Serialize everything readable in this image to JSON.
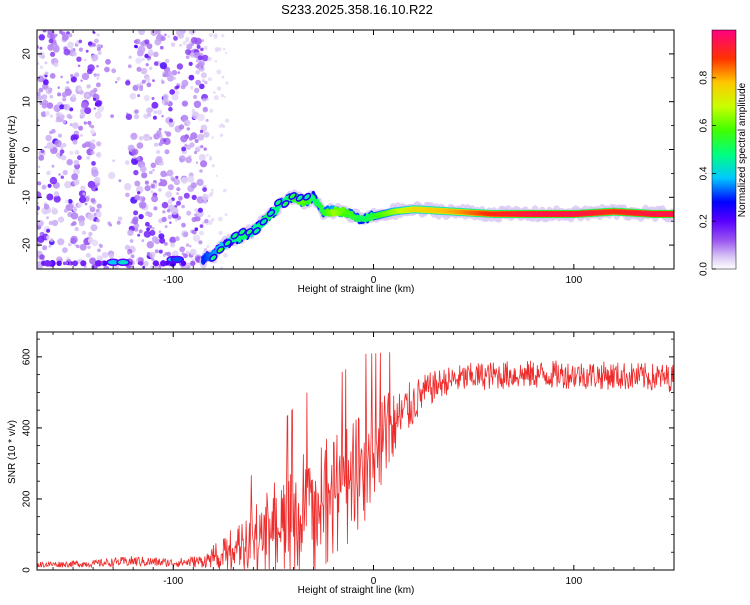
{
  "title": "S233.2025.358.16.10.R22",
  "chart_data": [
    {
      "type": "heatmap",
      "name": "spectrogram",
      "xlabel": "Height of straight line (km)",
      "ylabel": "Frequency (Hz)",
      "xlim": [
        -168,
        150
      ],
      "ylim": [
        -25,
        25
      ],
      "xticks": [
        -100,
        0,
        100
      ],
      "yticks": [
        -20,
        -10,
        0,
        10,
        20
      ],
      "xtick_labels": [
        "-100",
        "0",
        "100"
      ],
      "ytick_labels": [
        "-20",
        "-10",
        "0",
        "10",
        "20"
      ],
      "colorbar": {
        "label": "Normalized spectral amplitude",
        "range": [
          0,
          1
        ],
        "ticks": [
          0.0,
          0.2,
          0.4,
          0.6,
          0.8
        ],
        "tick_labels": [
          "0.0",
          "0.2",
          "0.4",
          "0.6",
          "0.8"
        ]
      },
      "carrier_track": {
        "x": [
          -85,
          -80,
          -75,
          -70,
          -65,
          -60,
          -55,
          -50,
          -45,
          -40,
          -35,
          -30,
          -25,
          -20,
          -15,
          -10,
          -5,
          0,
          10,
          20,
          40,
          60,
          80,
          100,
          120,
          140,
          150
        ],
        "freq": [
          -23,
          -22,
          -20,
          -19,
          -18,
          -17,
          -15,
          -13,
          -11,
          -10,
          -11,
          -10,
          -13,
          -13,
          -13,
          -14,
          -14.5,
          -14,
          -13,
          -12.5,
          -13,
          -13.5,
          -13.5,
          -13.5,
          -13,
          -13.5,
          -13.5
        ],
        "amplitude": [
          0.3,
          0.35,
          0.4,
          0.45,
          0.5,
          0.45,
          0.5,
          0.5,
          0.45,
          0.55,
          0.6,
          0.5,
          0.55,
          0.65,
          0.6,
          0.55,
          0.5,
          0.55,
          0.65,
          0.75,
          0.8,
          0.9,
          0.95,
          0.95,
          0.9,
          0.95,
          0.95
        ]
      },
      "notes": "noise scatter at low amplitude for x < -85 km"
    },
    {
      "type": "line",
      "name": "snr",
      "xlabel": "Height of straight line (km)",
      "ylabel": "SNR (10 * v/v)",
      "xlim": [
        -168,
        150
      ],
      "ylim": [
        0,
        670
      ],
      "xticks": [
        -100,
        0,
        100
      ],
      "yticks": [
        0,
        200,
        400,
        600
      ],
      "xtick_labels": [
        "-100",
        "0",
        "100"
      ],
      "ytick_labels": [
        "0",
        "200",
        "400",
        "600"
      ],
      "line_color": "#ee2b2b",
      "envelope": {
        "x": [
          -168,
          -140,
          -120,
          -100,
          -85,
          -75,
          -65,
          -55,
          -45,
          -35,
          -25,
          -15,
          -5,
          5,
          15,
          25,
          35,
          50,
          70,
          100,
          130,
          150
        ],
        "mean": [
          15,
          18,
          25,
          20,
          25,
          45,
          70,
          90,
          110,
          140,
          180,
          230,
          300,
          370,
          440,
          500,
          530,
          545,
          550,
          550,
          545,
          540
        ],
        "spread": [
          8,
          10,
          15,
          12,
          18,
          40,
          70,
          110,
          140,
          160,
          160,
          150,
          140,
          110,
          80,
          50,
          40,
          40,
          40,
          40,
          40,
          40
        ]
      }
    }
  ]
}
